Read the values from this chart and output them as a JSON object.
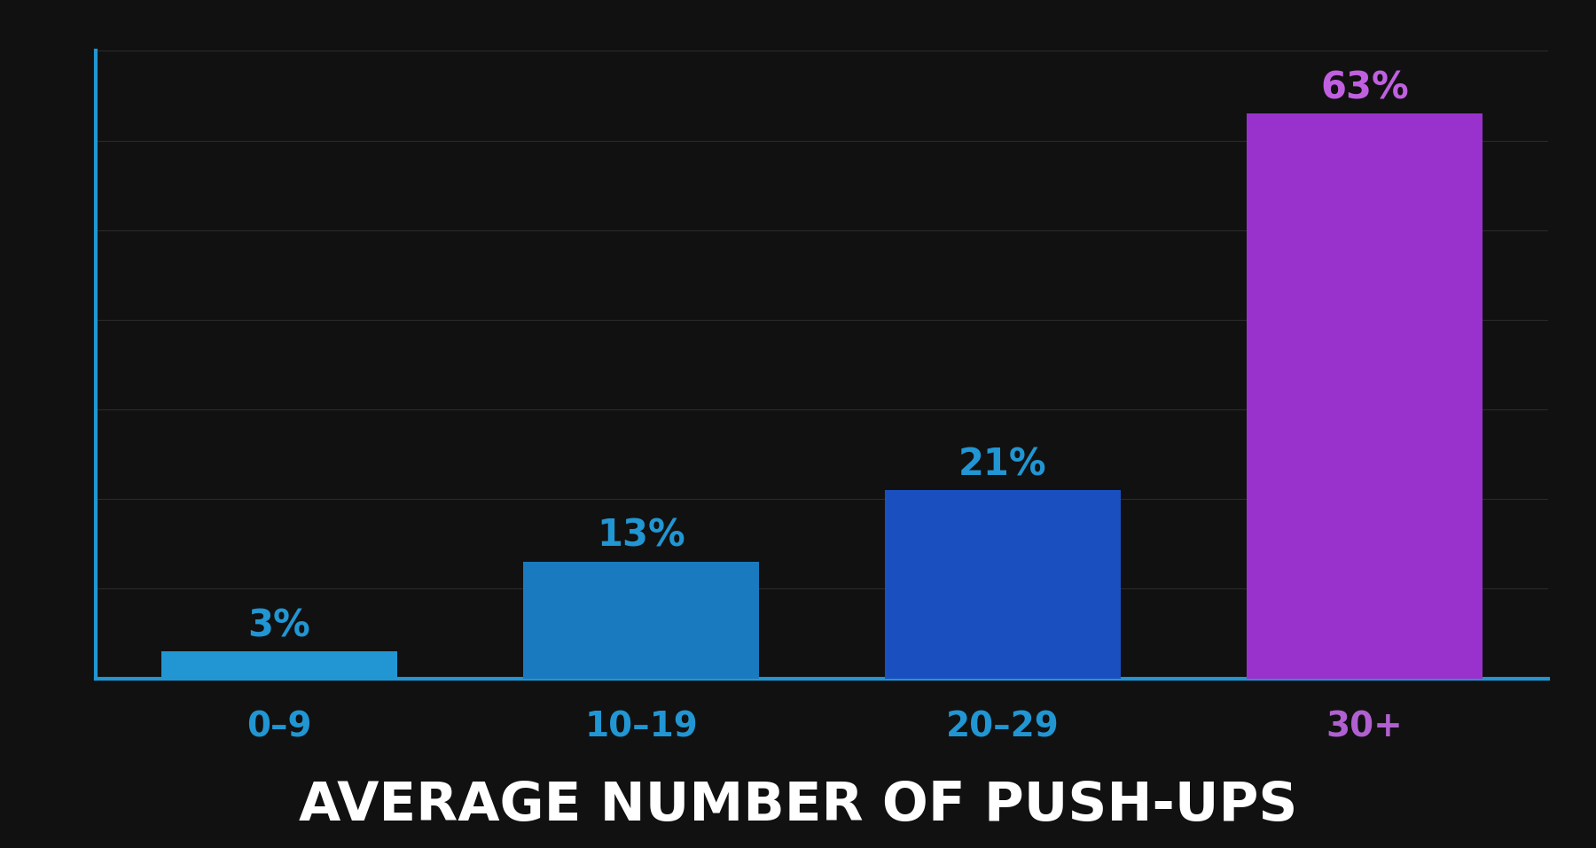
{
  "categories": [
    "0–9",
    "10–19",
    "20–29",
    "30+"
  ],
  "values": [
    3,
    13,
    21,
    63
  ],
  "bar_colors": [
    "#2196d3",
    "#1a7abf",
    "#1a4fbf",
    "#9932cc"
  ],
  "label_colors": [
    "#2196d3",
    "#2196d3",
    "#2196d3",
    "#c060e0"
  ],
  "xlabel_colors": [
    "#2196d3",
    "#2196d3",
    "#2196d3",
    "#b060d0"
  ],
  "background_color": "#111111",
  "axis_color": "#2196d3",
  "grid_color": "#2a2a2a",
  "title": "AVERAGE NUMBER OF PUSH-UPS",
  "title_color": "#ffffff",
  "title_fontsize": 44,
  "label_fontsize": 30,
  "tick_fontsize": 28,
  "ylim": [
    0,
    70
  ]
}
